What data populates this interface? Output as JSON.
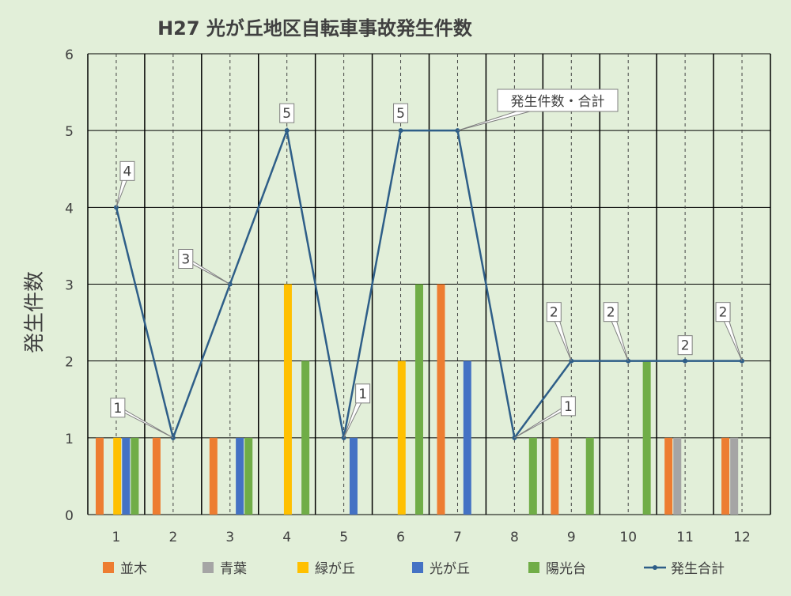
{
  "chart_data": {
    "type": "bar",
    "title": "H27  光が丘地区自転車事故発生件数",
    "ylabel": "発生件数",
    "xlabel": "",
    "categories": [
      "1",
      "2",
      "3",
      "4",
      "5",
      "6",
      "7",
      "8",
      "9",
      "10",
      "11",
      "12"
    ],
    "ylim": [
      0,
      6
    ],
    "yticks": [
      "0",
      "1",
      "2",
      "3",
      "4",
      "5",
      "6"
    ],
    "grid": true,
    "legend_position": "bottom",
    "series": [
      {
        "name": "並木",
        "type": "bar",
        "color": "#ed7d31",
        "values": [
          1,
          1,
          1,
          0,
          0,
          0,
          3,
          0,
          1,
          0,
          1,
          1
        ]
      },
      {
        "name": "青葉",
        "type": "bar",
        "color": "#a5a5a5",
        "values": [
          0,
          0,
          0,
          0,
          0,
          0,
          0,
          0,
          0,
          0,
          1,
          1
        ]
      },
      {
        "name": "緑が丘",
        "type": "bar",
        "color": "#ffc000",
        "values": [
          1,
          0,
          0,
          3,
          0,
          2,
          0,
          0,
          0,
          0,
          0,
          0
        ]
      },
      {
        "name": "光が丘",
        "type": "bar",
        "color": "#4472c4",
        "values": [
          1,
          0,
          1,
          0,
          1,
          0,
          2,
          0,
          0,
          0,
          0,
          0
        ]
      },
      {
        "name": "陽光台",
        "type": "bar",
        "color": "#70ad47",
        "values": [
          1,
          0,
          1,
          2,
          0,
          3,
          0,
          1,
          1,
          2,
          0,
          0
        ]
      },
      {
        "name": "発生合計",
        "type": "line",
        "color": "#2e5e88",
        "values": [
          4,
          1,
          3,
          5,
          1,
          5,
          5,
          1,
          2,
          2,
          2,
          2
        ]
      }
    ],
    "data_labels": [
      {
        "index": 0,
        "value": "4"
      },
      {
        "index": 1,
        "value": "1"
      },
      {
        "index": 2,
        "value": "3"
      },
      {
        "index": 3,
        "value": "5"
      },
      {
        "index": 4,
        "value": "1"
      },
      {
        "index": 5,
        "value": "5"
      },
      {
        "index": 7,
        "value": "1"
      },
      {
        "index": 8,
        "value": "2"
      },
      {
        "index": 9,
        "value": "2"
      },
      {
        "index": 10,
        "value": "2"
      },
      {
        "index": 11,
        "value": "2"
      }
    ],
    "annotation": "発生件数・合計"
  }
}
